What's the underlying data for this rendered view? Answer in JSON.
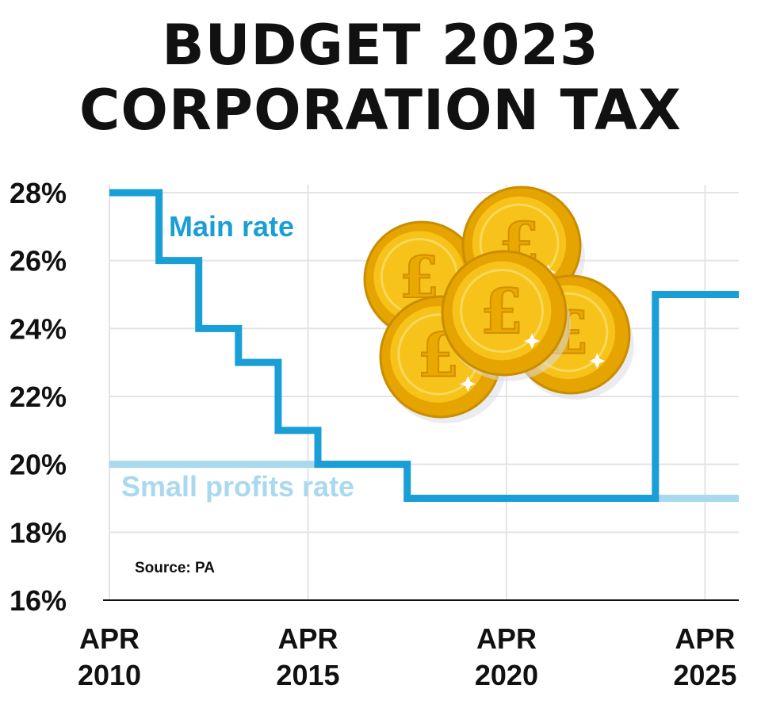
{
  "title_line_1": "BUDGET 2023",
  "title_line_2": "CORPORATION TAX",
  "source": "Source: PA",
  "colors": {
    "main": "#1a9ed6",
    "small": "#a8d9ee",
    "grid": "#e4e4e4",
    "text": "#111111"
  },
  "illustration": "pound-coins-icon",
  "chart_data": {
    "type": "line",
    "step": true,
    "grid": true,
    "ylim": [
      16,
      28
    ],
    "xlim": [
      2010.0,
      2025.85
    ],
    "yticks": [
      16,
      18,
      20,
      22,
      24,
      26,
      28
    ],
    "ytick_labels": [
      "16%",
      "18%",
      "20%",
      "22%",
      "24%",
      "26%",
      "28%"
    ],
    "xticks": [
      2010,
      2015,
      2020,
      2025
    ],
    "xtick_labels": [
      [
        "APR",
        "2010"
      ],
      [
        "APR",
        "2015"
      ],
      [
        "APR",
        "2020"
      ],
      [
        "APR",
        "2025"
      ]
    ],
    "series": [
      {
        "name": "Main rate",
        "key": "main",
        "x": [
          2010.0,
          2011.25,
          2012.25,
          2013.25,
          2014.25,
          2015.25,
          2017.5,
          2023.75,
          2025.85
        ],
        "y": [
          28,
          26,
          24,
          23,
          21,
          20,
          19,
          25,
          25
        ]
      },
      {
        "name": "Small profits rate",
        "key": "small",
        "x": [
          2010.0,
          2015.25,
          2017.5,
          2023.75,
          2025.85
        ],
        "y": [
          20,
          20,
          19,
          19,
          19
        ]
      }
    ]
  }
}
